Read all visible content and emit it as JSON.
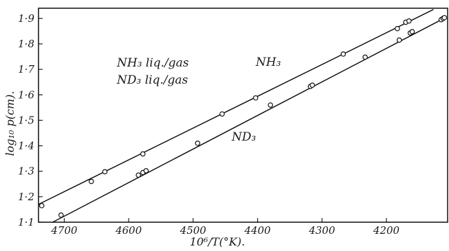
{
  "chart_data": {
    "type": "scatter",
    "xlabel": "10⁶/T(°K).",
    "ylabel": "log₁₀ p(cm).",
    "xlim": [
      4740,
      4105
    ],
    "ylim": [
      1.1,
      1.94
    ],
    "x_reversed": true,
    "grid": false,
    "xticks": [
      {
        "value": 4700,
        "label": "4700"
      },
      {
        "value": 4600,
        "label": "4600"
      },
      {
        "value": 4500,
        "label": "4500"
      },
      {
        "value": 4400,
        "label": "4400"
      },
      {
        "value": 4300,
        "label": "4300"
      },
      {
        "value": 4200,
        "label": "4200"
      }
    ],
    "yticks": [
      {
        "value": 1.1,
        "label": "1·1"
      },
      {
        "value": 1.2,
        "label": "1·2"
      },
      {
        "value": 1.3,
        "label": "1·3"
      },
      {
        "value": 1.4,
        "label": "1·4"
      },
      {
        "value": 1.5,
        "label": "1·5"
      },
      {
        "value": 1.6,
        "label": "1·6"
      },
      {
        "value": 1.7,
        "label": "1·7"
      },
      {
        "value": 1.8,
        "label": "1·8"
      },
      {
        "value": 1.9,
        "label": "1·9"
      }
    ],
    "annotations": [
      "NH₃ liq./gas",
      "ND₃ liq./gas"
    ],
    "series": [
      {
        "name": "NH₃",
        "x": [
          4735,
          4658,
          4637,
          4578,
          4455,
          4403,
          4267,
          4183,
          4170,
          4165
        ],
        "y": [
          1.165,
          1.26,
          1.298,
          1.368,
          1.525,
          1.588,
          1.76,
          1.86,
          1.885,
          1.89
        ],
        "fit": {
          "x": [
            4740,
            4127
          ],
          "y": [
            1.17,
            1.935
          ]
        }
      },
      {
        "name": "ND₃",
        "x": [
          4705,
          4585,
          4578,
          4573,
          4493,
          4380,
          4318,
          4315,
          4233,
          4180,
          4163,
          4160,
          4115,
          4112,
          4110
        ],
        "y": [
          1.128,
          1.285,
          1.295,
          1.302,
          1.41,
          1.56,
          1.633,
          1.638,
          1.748,
          1.815,
          1.843,
          1.848,
          1.895,
          1.9,
          1.903
        ],
        "fit": {
          "x": [
            4718,
            4107
          ],
          "y": [
            1.1,
            1.905
          ]
        }
      }
    ]
  }
}
